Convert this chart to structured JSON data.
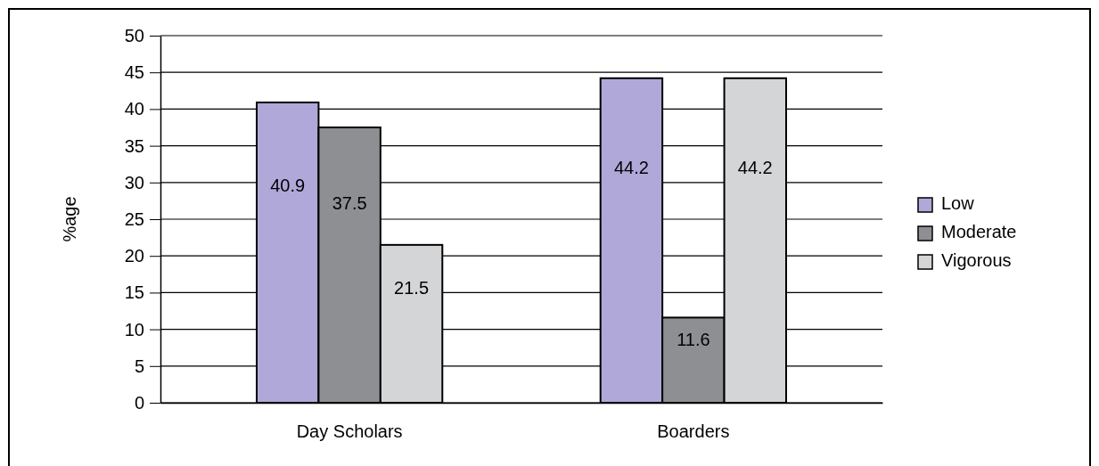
{
  "chart_data": {
    "type": "bar",
    "ylabel": "%age",
    "categories": [
      "Day Scholars",
      "Boarders"
    ],
    "series": [
      {
        "name": "Low",
        "color": "#b0a8d8",
        "values": [
          40.9,
          44.2
        ]
      },
      {
        "name": "Moderate",
        "color": "#8e8f93",
        "values": [
          37.5,
          11.6
        ]
      },
      {
        "name": "Vigorous",
        "color": "#d4d5d7",
        "values": [
          21.5,
          44.2
        ]
      }
    ],
    "ylim": [
      0,
      50
    ],
    "yticks": [
      0,
      5,
      10,
      15,
      20,
      25,
      30,
      35,
      40,
      45,
      50
    ],
    "grid": "y",
    "legend": "right",
    "data_labels": true
  }
}
